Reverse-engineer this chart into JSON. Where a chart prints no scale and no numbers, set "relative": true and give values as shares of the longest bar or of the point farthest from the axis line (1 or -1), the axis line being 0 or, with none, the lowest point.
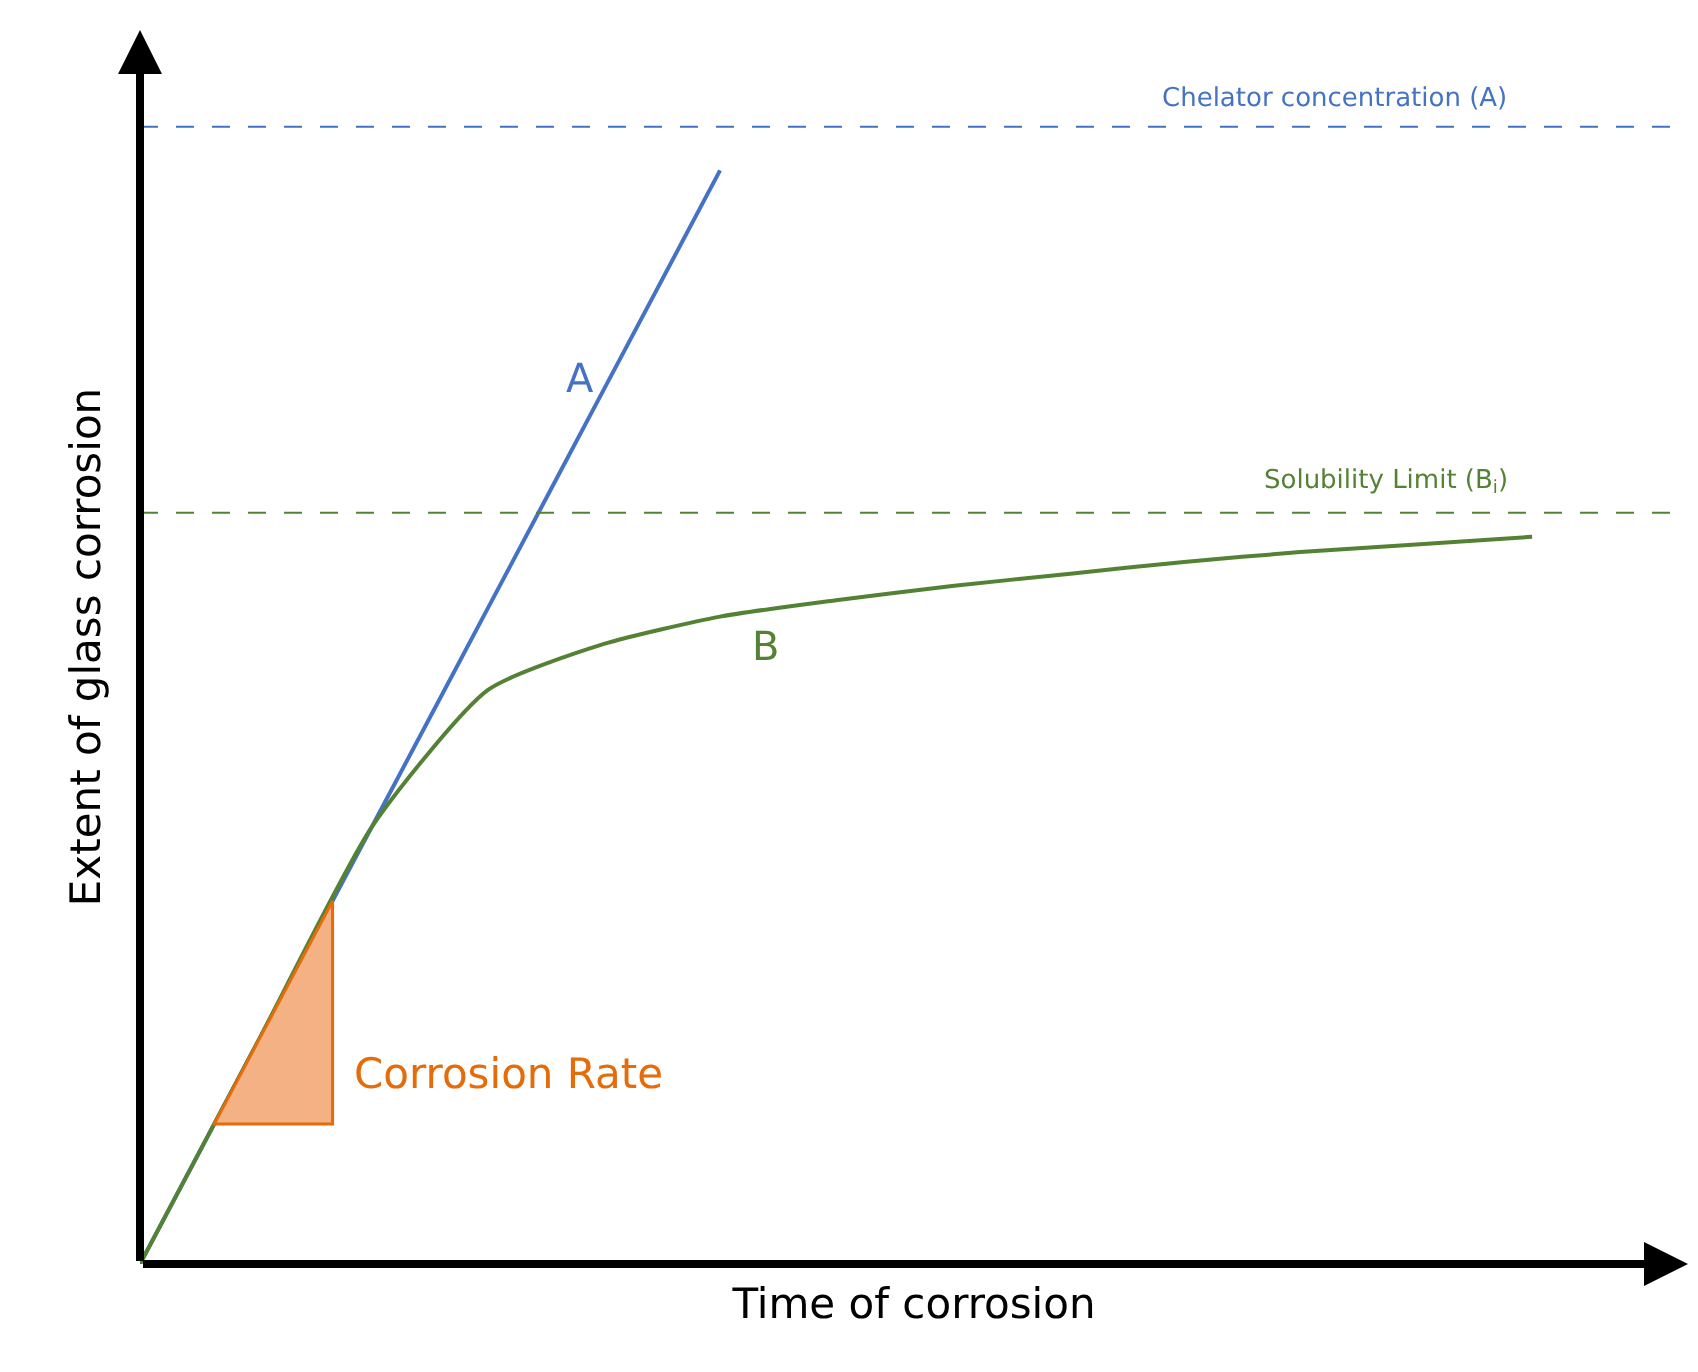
{
  "chart_data": {
    "type": "line",
    "relative": true,
    "xlabel": "Time of corrosion",
    "ylabel": "Extent of glass corrosion",
    "categories": [
      null,
      null,
      null,
      null,
      null,
      null,
      null,
      null,
      null,
      null,
      null,
      null,
      null
    ],
    "series": [
      {
        "name": "A",
        "color": "#4472c4",
        "values": [
          0,
          0.2,
          0.4,
          0.6,
          0.8,
          1.0,
          null,
          null,
          null,
          null,
          null,
          null,
          null
        ]
      },
      {
        "name": "B",
        "color": "#548235",
        "values": [
          0,
          0.2,
          0.4,
          0.525,
          0.567,
          0.592,
          0.607,
          0.62,
          0.631,
          0.642,
          0.651,
          0.658,
          0.665
        ]
      }
    ],
    "ref_lines": [
      {
        "axis": "y",
        "value": 1.04,
        "label": "Chelator concentration (A)",
        "color": "#4472c4",
        "line_style": "dashed"
      },
      {
        "axis": "y",
        "value": 0.687,
        "label": "Solubility Limit (B$_{i}$)",
        "color": "#548235",
        "line_style": "dashed"
      }
    ],
    "annotations": [
      "Corrosion Rate"
    ],
    "legend": false,
    "marker": "none",
    "line_style": "solid",
    "tick_labels": false
  }
}
